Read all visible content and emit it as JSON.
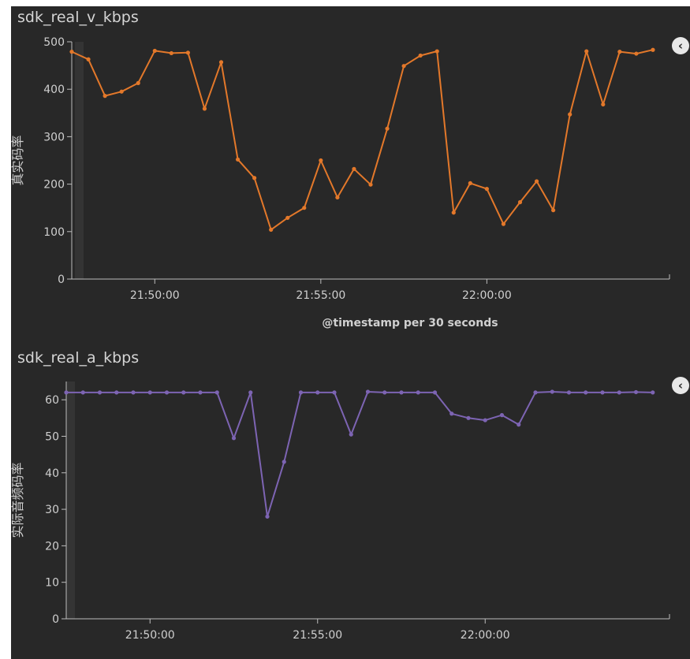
{
  "panels": [
    {
      "title": "sdk_real_v_kbps",
      "ylabel": "真实码率",
      "xlabel": "@timestamp per 30 seconds"
    },
    {
      "title": "sdk_real_a_kbps",
      "ylabel": "实际音频码率",
      "xlabel": ""
    }
  ],
  "icons": {
    "collapse": "chevron-left-icon"
  },
  "chart_data": [
    {
      "type": "line",
      "title": "sdk_real_v_kbps",
      "xlabel": "@timestamp per 30 seconds",
      "ylabel": "真实码率",
      "x_tick_labels": [
        "21:50:00",
        "21:55:00",
        "22:00:00"
      ],
      "y_ticks": [
        0,
        100,
        200,
        300,
        400,
        500
      ],
      "ylim": [
        0,
        500
      ],
      "xlim": [
        "21:47:30",
        "22:05:30"
      ],
      "color": "#e3782a",
      "x": [
        "21:47:30",
        "21:48:00",
        "21:48:30",
        "21:49:00",
        "21:49:30",
        "21:50:00",
        "21:50:30",
        "21:51:00",
        "21:51:30",
        "21:52:00",
        "21:52:30",
        "21:53:00",
        "21:53:30",
        "21:54:00",
        "21:54:30",
        "21:55:00",
        "21:55:30",
        "21:56:00",
        "21:56:30",
        "21:57:00",
        "21:57:30",
        "21:58:00",
        "21:58:30",
        "21:59:00",
        "21:59:30",
        "22:00:00",
        "22:00:30",
        "22:01:00",
        "22:01:30",
        "22:02:00",
        "22:02:30",
        "22:03:00",
        "22:03:30",
        "22:04:00",
        "22:04:30",
        "22:05:00"
      ],
      "values": [
        479,
        463,
        386,
        395,
        413,
        481,
        476,
        477,
        359,
        457,
        252,
        213,
        104,
        129,
        150,
        250,
        172,
        232,
        199,
        317,
        449,
        471,
        480,
        140,
        202,
        190,
        116,
        162,
        206,
        145,
        347,
        480,
        368,
        479,
        475,
        483
      ]
    },
    {
      "type": "line",
      "title": "sdk_real_a_kbps",
      "xlabel": "",
      "ylabel": "实际音频码率",
      "x_tick_labels": [
        "21:50:00",
        "21:55:00",
        "22:00:00"
      ],
      "y_ticks": [
        0,
        10,
        20,
        30,
        40,
        50,
        60
      ],
      "ylim": [
        0,
        65
      ],
      "xlim": [
        "21:47:30",
        "22:05:30"
      ],
      "color": "#7d64b3",
      "x": [
        "21:47:30",
        "21:48:00",
        "21:48:30",
        "21:49:00",
        "21:49:30",
        "21:50:00",
        "21:50:30",
        "21:51:00",
        "21:51:30",
        "21:52:00",
        "21:52:30",
        "21:53:00",
        "21:53:30",
        "21:54:00",
        "21:54:30",
        "21:55:00",
        "21:55:30",
        "21:56:00",
        "21:56:30",
        "21:57:00",
        "21:57:30",
        "21:58:00",
        "21:58:30",
        "21:59:00",
        "21:59:30",
        "22:00:00",
        "22:00:30",
        "22:01:00",
        "22:01:30",
        "22:02:00",
        "22:02:30",
        "22:03:00",
        "22:03:30",
        "22:04:00",
        "22:04:30",
        "22:05:00"
      ],
      "values": [
        62,
        62,
        62,
        62,
        62,
        62,
        62,
        62,
        62,
        62,
        49.5,
        62,
        28,
        43,
        62,
        62,
        62,
        50.5,
        62.2,
        62,
        62,
        62,
        62,
        56.2,
        55,
        54.4,
        55.8,
        53.2,
        62,
        62.2,
        62,
        62,
        62,
        62,
        62.1,
        62
      ]
    }
  ]
}
